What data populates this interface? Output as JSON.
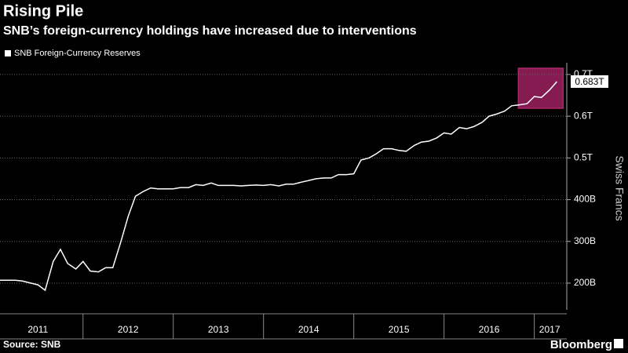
{
  "chart_data": {
    "type": "line",
    "title": "Rising Pile",
    "subtitle": "SNB’s foreign-currency holdings have increased due to interventions",
    "y_axis_label": "Swiss Francs",
    "source": "Source: SNB",
    "brand": "Bloomberg",
    "x": [
      2011.08,
      2011.17,
      2011.25,
      2011.33,
      2011.42,
      2011.5,
      2011.58,
      2011.67,
      2011.75,
      2011.83,
      2011.92,
      2012,
      2012.08,
      2012.17,
      2012.25,
      2012.33,
      2012.42,
      2012.5,
      2012.58,
      2012.67,
      2012.75,
      2012.83,
      2012.92,
      2013,
      2013.08,
      2013.17,
      2013.25,
      2013.33,
      2013.42,
      2013.5,
      2013.58,
      2013.67,
      2013.75,
      2013.83,
      2013.92,
      2014,
      2014.08,
      2014.17,
      2014.25,
      2014.33,
      2014.42,
      2014.5,
      2014.58,
      2014.67,
      2014.75,
      2014.83,
      2014.92,
      2015,
      2015.08,
      2015.17,
      2015.25,
      2015.33,
      2015.42,
      2015.5,
      2015.58,
      2015.67,
      2015.75,
      2015.83,
      2015.92,
      2016,
      2016.08,
      2016.17,
      2016.25,
      2016.33,
      2016.42,
      2016.5,
      2016.58,
      2016.67,
      2016.75,
      2016.83,
      2016.92,
      2017,
      2017.08,
      2017.17,
      2017.25
    ],
    "series": [
      {
        "name": "SNB Foreign-Currency Reserves",
        "color": "#ffffff",
        "values": [
          207,
          207,
          207,
          205,
          200,
          196,
          183,
          252,
          281,
          247,
          234,
          252,
          229,
          227,
          237,
          237,
          300,
          360,
          408,
          420,
          428,
          426,
          426,
          426,
          429,
          429,
          436,
          434,
          440,
          434,
          434,
          434,
          433,
          434,
          435,
          434,
          436,
          433,
          437,
          437,
          442,
          446,
          450,
          452,
          452,
          460,
          460,
          462,
          495,
          500,
          510,
          522,
          522,
          518,
          516,
          530,
          538,
          540,
          548,
          560,
          557,
          573,
          570,
          575,
          585,
          600,
          605,
          612,
          625,
          627,
          630,
          647,
          645,
          663,
          683
        ]
      }
    ],
    "annotation": {
      "value": 683,
      "label": "0.683T"
    },
    "xlim": [
      2011.08,
      2017.36
    ],
    "xticks": [
      {
        "value": 2011.5,
        "label": "2011"
      },
      {
        "value": 2012.5,
        "label": "2012"
      },
      {
        "value": 2013.5,
        "label": "2013"
      },
      {
        "value": 2014.5,
        "label": "2014"
      },
      {
        "value": 2015.5,
        "label": "2015"
      },
      {
        "value": 2016.5,
        "label": "2016"
      },
      {
        "value": 2017.17,
        "label": "2017"
      }
    ],
    "ylim": [
      136,
      713
    ],
    "yticks": [
      {
        "value": 200,
        "label": "200B"
      },
      {
        "value": 300,
        "label": "300B"
      },
      {
        "value": 400,
        "label": "400B"
      },
      {
        "value": 500,
        "label": "0.5T"
      },
      {
        "value": 600,
        "label": "0.6T"
      },
      {
        "value": 700,
        "label": "0.7T"
      }
    ],
    "grid": true,
    "highlight_color": "#b0266e"
  }
}
